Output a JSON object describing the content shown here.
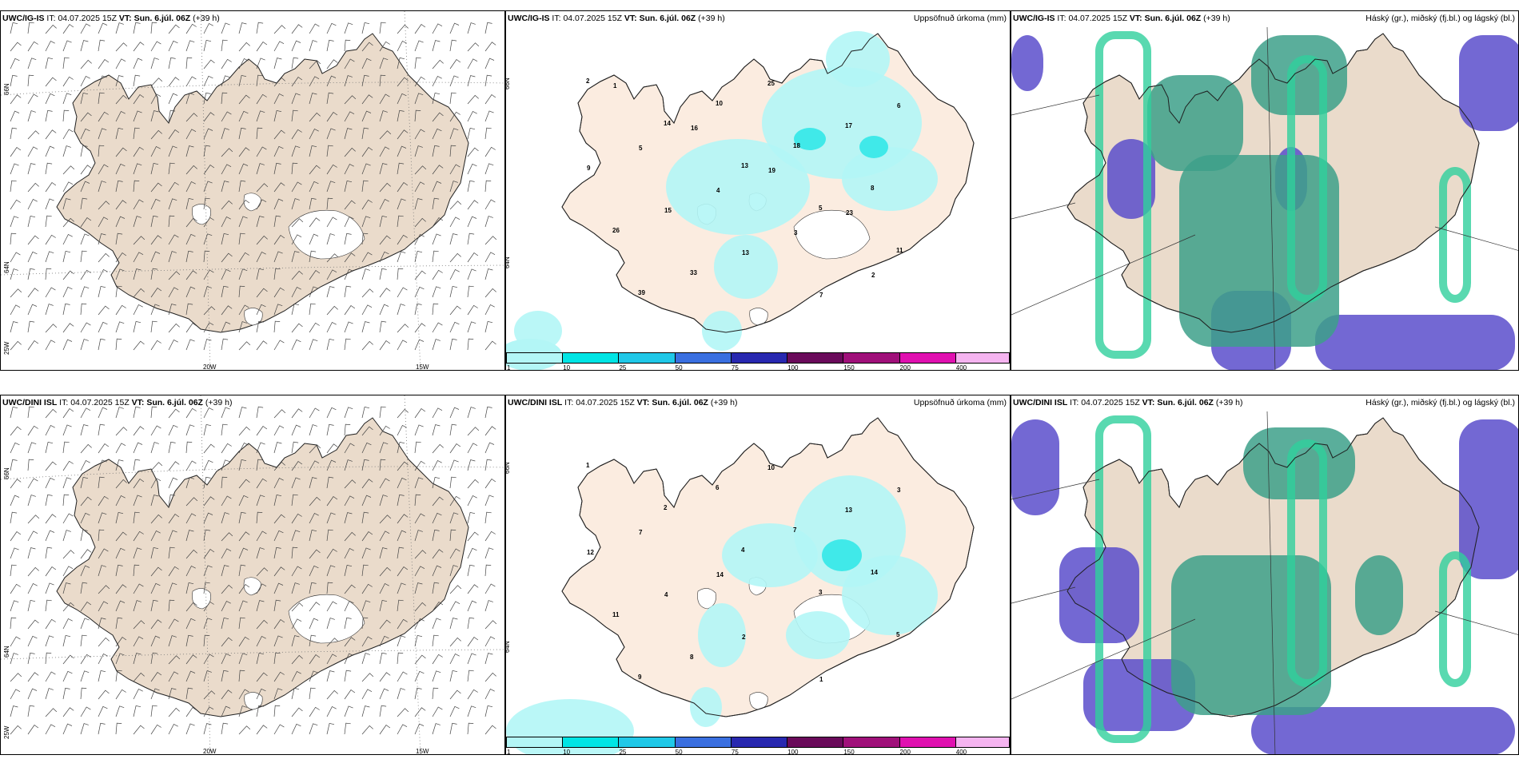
{
  "colors": {
    "land": "#eadbcb",
    "land_light": "#fbece0",
    "precip_light": "#b3f6f6",
    "precip_med": "#33e8e8",
    "cloud_high": "#5a4ecb",
    "cloud_mid": "#3da08a",
    "cloud_low": "#2fd09c"
  },
  "rows": [
    {
      "model": "UWC/IG-IS",
      "wind_panel": {
        "it_label": "IT:",
        "it_value": "04.07.2025 15Z",
        "vt_label": "VT:",
        "vt_value": "Sun. 6.júl. 06Z",
        "lead": "(+39 h)"
      },
      "precip_panel": {
        "it_label": "IT:",
        "it_value": "04.07.2025 15Z",
        "vt_label": "VT:",
        "vt_value": "Sun. 6.júl. 06Z",
        "lead": "(+39 h)",
        "field_title": "Uppsöfnuð úrkoma (mm)"
      },
      "cloud_panel": {
        "it_label": "IT:",
        "it_value": "04.07.2025 15Z",
        "vt_label": "VT:",
        "vt_value": "Sun. 6.júl. 06Z",
        "lead": "(+39 h)",
        "field_title": "Háský (gr.), miðský (fj.bl.) og lágský (bl.)"
      }
    },
    {
      "model": "UWC/DINI ISL",
      "wind_panel": {
        "it_label": "IT:",
        "it_value": "04.07.2025 15Z",
        "vt_label": "VT:",
        "vt_value": "Sun. 6.júl. 06Z",
        "lead": "(+39 h)"
      },
      "precip_panel": {
        "it_label": "IT:",
        "it_value": "04.07.2025 15Z",
        "vt_label": "VT:",
        "vt_value": "Sun. 6.júl. 06Z",
        "lead": "(+39 h)",
        "field_title": "Uppsöfnuð úrkoma (mm)"
      },
      "cloud_panel": {
        "it_label": "IT:",
        "it_value": "04.07.2025 15Z",
        "vt_label": "VT:",
        "vt_value": "Sun. 6.júl. 06Z",
        "lead": "(+39 h)",
        "field_title": "Háský (gr.), miðský (fj.bl.) og lágský (bl.)"
      }
    }
  ],
  "axis_labels": {
    "lon_20w": "20W",
    "lon_15w": "15W",
    "lat_66n": "66N",
    "lat_64n": "64N",
    "lat_25w": "25W"
  },
  "colorbar": {
    "ticks": [
      "1",
      "10",
      "25",
      "50",
      "75",
      "100",
      "150",
      "200",
      "400"
    ],
    "colors": [
      "#b3f6f6",
      "#00e5e5",
      "#20c8e8",
      "#3a6fe0",
      "#2828b0",
      "#6a0a5a",
      "#a0107a",
      "#e010b0",
      "#f5b4f0"
    ]
  },
  "precip_values_top": [
    "2",
    "14",
    "13",
    "5",
    "11",
    "39",
    "10",
    "18",
    "8",
    "26",
    "33",
    "25",
    "17",
    "9",
    "15",
    "13",
    "7",
    "6",
    "5",
    "4",
    "3",
    "2",
    "1",
    "16",
    "19",
    "23"
  ],
  "precip_values_bottom": [
    "1",
    "2",
    "4",
    "3",
    "5",
    "9",
    "6",
    "7",
    "14",
    "11",
    "8",
    "10",
    "13",
    "12",
    "4",
    "2",
    "1",
    "3",
    "7",
    "14"
  ]
}
